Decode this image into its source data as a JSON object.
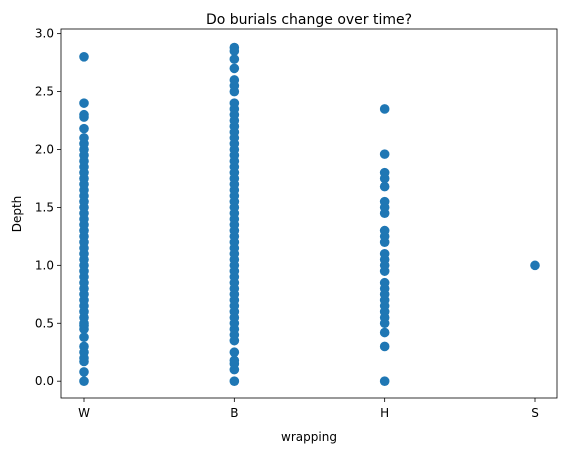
{
  "chart_data": {
    "type": "scatter",
    "title": "Do burials change over time?",
    "xlabel": "wrapping",
    "ylabel": "Depth",
    "categories": [
      "W",
      "B",
      "H",
      "S"
    ],
    "ylim": [
      -0.145,
      3.04
    ],
    "yticks": [
      0.0,
      0.5,
      1.0,
      1.5,
      2.0,
      2.5,
      3.0
    ],
    "ytick_labels": [
      "0.0",
      "0.5",
      "1.0",
      "1.5",
      "2.0",
      "2.5",
      "3.0"
    ],
    "grid": false,
    "legend": "none",
    "marker_color": "#1f77b4",
    "series": [
      {
        "category": "W",
        "values": [
          0.0,
          0.08,
          0.17,
          0.2,
          0.25,
          0.3,
          0.38,
          0.45,
          0.48,
          0.5,
          0.55,
          0.6,
          0.65,
          0.7,
          0.75,
          0.8,
          0.85,
          0.9,
          0.95,
          1.0,
          1.05,
          1.1,
          1.15,
          1.2,
          1.25,
          1.3,
          1.35,
          1.4,
          1.45,
          1.5,
          1.55,
          1.6,
          1.65,
          1.7,
          1.75,
          1.8,
          1.85,
          1.9,
          1.95,
          2.0,
          2.05,
          2.1,
          2.18,
          2.28,
          2.3,
          2.4,
          2.8
        ]
      },
      {
        "category": "B",
        "values": [
          0.0,
          0.1,
          0.15,
          0.18,
          0.25,
          0.35,
          0.4,
          0.45,
          0.5,
          0.55,
          0.6,
          0.65,
          0.7,
          0.75,
          0.8,
          0.85,
          0.9,
          0.95,
          1.0,
          1.05,
          1.1,
          1.15,
          1.2,
          1.25,
          1.3,
          1.35,
          1.4,
          1.45,
          1.5,
          1.55,
          1.6,
          1.65,
          1.7,
          1.75,
          1.8,
          1.85,
          1.9,
          1.95,
          2.0,
          2.05,
          2.1,
          2.15,
          2.2,
          2.25,
          2.3,
          2.35,
          2.4,
          2.5,
          2.55,
          2.6,
          2.7,
          2.78,
          2.85,
          2.88
        ]
      },
      {
        "category": "H",
        "values": [
          0.0,
          0.3,
          0.42,
          0.5,
          0.55,
          0.6,
          0.65,
          0.7,
          0.75,
          0.8,
          0.85,
          0.95,
          1.0,
          1.05,
          1.1,
          1.2,
          1.25,
          1.3,
          1.45,
          1.5,
          1.55,
          1.68,
          1.75,
          1.8,
          1.96,
          2.35
        ]
      },
      {
        "category": "S",
        "values": [
          1.0
        ]
      }
    ]
  }
}
